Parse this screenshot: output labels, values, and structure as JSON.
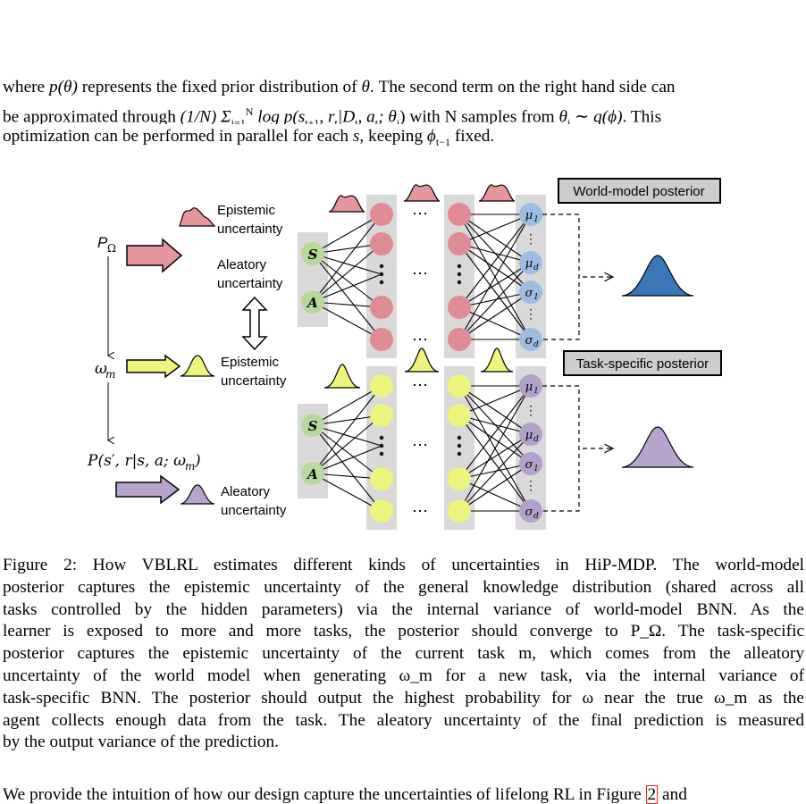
{
  "intro": {
    "line1_a": "where ",
    "line1_math": "p(θ)",
    "line1_b": " represents the fixed prior distribution of ",
    "line1_theta": "θ",
    "line1_c": ". The second term on the right hand side can",
    "line2_a": "be approximated through ",
    "line2_math": "(1/N) Σ",
    "line2_math2": "log p(s",
    "line2_math3": ", r",
    "line2_math4": "|D",
    "line2_math5": ", a",
    "line2_math6": "; θ",
    "line2_b": ") with N samples from ",
    "line2_math7": "θ",
    "line2_math8": " ∼ q(ϕ)",
    "line2_c": ". This",
    "line3_a": "optimization can be performed in parallel for each ",
    "line3_s": "s",
    "line3_b": ", keeping ",
    "line3_phi": "ϕ",
    "line3_c": " fixed.",
    "sub_i1": "i=1",
    "sup_N": "N",
    "sub_t1": "t+1",
    "sub_t": "t",
    "sub_i": "i",
    "sub_tm1": "t−1"
  },
  "figure": {
    "world_posterior_label": "World-model posterior",
    "task_posterior_label": "Task-specific posterior",
    "p_omega": "P",
    "p_omega_sub": "Ω",
    "omega_m": "ω",
    "omega_m_sub": "m",
    "transition": "P(s′, r|s, a; ω",
    "transition_close": ")",
    "epistemic_1a": "Epistemic",
    "epistemic_1b": "uncertainty",
    "aleatory_1a": "Aleatory",
    "aleatory_1b": "uncertainty",
    "epistemic_2a": "Epistemic",
    "epistemic_2b": "uncertainty",
    "aleatory_2a": "Aleatory",
    "aleatory_2b": "uncertainty",
    "input_s": "S",
    "input_a": "A",
    "mu1": "μ",
    "mu1_sub": "1",
    "mud": "μ",
    "mud_sub": "d",
    "sig1": "σ",
    "sig1_sub": "1",
    "sigd": "σ",
    "sigd_sub": "d",
    "ellipsis": "⋯",
    "vdots": "⋮",
    "colors": {
      "red_node": "#e08c94",
      "red_shape": "#e5959c",
      "yellow_node": "#eef57c",
      "yellow_shape": "#eef57c",
      "green_node": "#b8d99c",
      "blue_node": "#9dbde3",
      "blue_gauss": "#3b76b9",
      "purple_node": "#b3a1cb",
      "purple_gauss": "#b6a4cc",
      "column_bg": "#d9d9d9",
      "label_box": "#cdcdcd"
    }
  },
  "caption": {
    "lines": [
      "Figure 2: How VBLRL estimates different kinds of uncertainties in HiP-MDP. The world-model",
      "posterior captures the epistemic uncertainty of the general knowledge distribution (shared across all",
      "tasks controlled by the hidden parameters) via the internal variance of world-model BNN. As the",
      "learner is exposed to more and more tasks, the posterior should converge to P_Ω. The task-specific",
      "posterior captures the epistemic uncertainty of the current task m, which comes from the alleatory",
      "uncertainty of the world model when generating ω_m for a new task, via the internal variance of",
      "task-specific BNN. The posterior should output the highest probability for ω near the true ω_m as the",
      "agent collects enough data from the task. The aleatory uncertainty of the final prediction is measured",
      "by the output variance of the prediction."
    ]
  },
  "tail": {
    "text_a": "We provide the intuition of how our design capture the uncertainties of lifelong RL in Figure ",
    "ref": "2",
    "text_b": " and"
  }
}
